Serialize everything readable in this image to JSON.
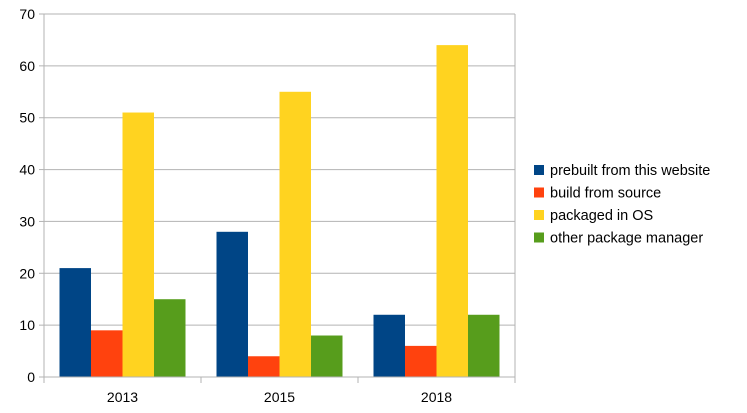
{
  "chart_data": {
    "type": "bar",
    "categories": [
      "2013",
      "2015",
      "2018"
    ],
    "series": [
      {
        "name": "prebuilt from this website",
        "color": "#004586",
        "values": [
          21,
          28,
          12
        ]
      },
      {
        "name": "build from source",
        "color": "#ff420e",
        "values": [
          9,
          4,
          6
        ]
      },
      {
        "name": "packaged in OS",
        "color": "#ffd320",
        "values": [
          51,
          55,
          64
        ]
      },
      {
        "name": "other package manager",
        "color": "#579d1c",
        "values": [
          15,
          8,
          12
        ]
      }
    ],
    "title": "",
    "xlabel": "",
    "ylabel": "",
    "ylim": [
      0,
      70
    ],
    "yticks": [
      0,
      10,
      20,
      30,
      40,
      50,
      60,
      70
    ],
    "grid": true,
    "legend_position": "right"
  }
}
